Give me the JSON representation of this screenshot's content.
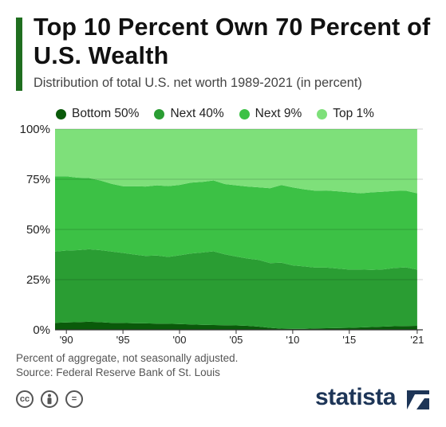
{
  "header": {
    "title": "Top 10 Percent Own 70 Percent of U.S. Wealth",
    "subtitle": "Distribution of total U.S. net worth 1989-2021 (in percent)"
  },
  "note": {
    "line1": "Percent of aggregate, not seasonally adjusted.",
    "line2": "Source: Federal Reserve Bank of St. Louis"
  },
  "footer": {
    "brand": "statista",
    "license_icons": [
      "cc-icon",
      "by-icon",
      "nd-icon"
    ],
    "cc_text": "cc",
    "nd_text": "="
  },
  "colors": {
    "bottom50": "#0a5a0a",
    "next40": "#2a9d33",
    "next9": "#3cc145",
    "top1": "#7ee07a",
    "background": "#ffffff",
    "brand": "#1d3557"
  },
  "chart_data": {
    "type": "area",
    "stacked": true,
    "x_tick_labels": [
      "'90",
      "'95",
      "'00",
      "'05",
      "'10",
      "'15",
      "'21"
    ],
    "x_tick_values": [
      1990,
      1995,
      2000,
      2005,
      2010,
      2015,
      2021
    ],
    "y_tick_labels": [
      "0%",
      "25%",
      "50%",
      "75%",
      "100%"
    ],
    "y_tick_values": [
      0,
      25,
      50,
      75,
      100
    ],
    "xlim": [
      1989,
      2021.5
    ],
    "ylim": [
      0,
      100
    ],
    "grid": true,
    "legend_position": "top",
    "x": [
      1989,
      1990,
      1991,
      1992,
      1993,
      1994,
      1995,
      1996,
      1997,
      1998,
      1999,
      2000,
      2001,
      2002,
      2003,
      2004,
      2005,
      2006,
      2007,
      2008,
      2009,
      2010,
      2011,
      2012,
      2013,
      2014,
      2015,
      2016,
      2017,
      2018,
      2019,
      2020,
      2021
    ],
    "series": [
      {
        "name": "Bottom 50%",
        "color": "#0a5a0a",
        "values": [
          3.5,
          3.7,
          3.8,
          4.0,
          3.8,
          3.5,
          3.4,
          3.3,
          3.2,
          3.1,
          3.0,
          2.9,
          2.7,
          2.5,
          2.4,
          2.3,
          2.2,
          2.0,
          1.6,
          1.0,
          0.6,
          0.5,
          0.5,
          0.7,
          0.8,
          0.9,
          1.0,
          1.2,
          1.4,
          1.6,
          1.8,
          1.9,
          2.0
        ]
      },
      {
        "name": "Next 40%",
        "color": "#2a9d33",
        "values": [
          35.5,
          35.8,
          35.9,
          36.1,
          35.9,
          35.5,
          34.9,
          34.2,
          33.6,
          33.9,
          33.3,
          34.2,
          35.3,
          36.0,
          36.7,
          35.3,
          34.3,
          33.5,
          33.2,
          32.2,
          32.8,
          31.6,
          31.1,
          30.3,
          30.2,
          29.6,
          29.0,
          28.8,
          28.5,
          28.5,
          29.0,
          29.2,
          28.0
        ]
      },
      {
        "name": "Next 9%",
        "color": "#3cc145",
        "values": [
          37.5,
          37.0,
          36.1,
          35.5,
          34.7,
          33.7,
          33.2,
          34.0,
          34.6,
          35.0,
          35.3,
          35.1,
          35.3,
          35.2,
          35.3,
          35.0,
          35.5,
          35.9,
          36.2,
          37.3,
          38.7,
          38.8,
          38.4,
          38.3,
          38.4,
          38.5,
          38.5,
          38.0,
          38.6,
          38.7,
          38.4,
          38.2,
          38.0
        ]
      },
      {
        "name": "Top 1%",
        "color": "#7ee07a",
        "values": [
          23.5,
          23.5,
          24.2,
          24.4,
          25.6,
          27.3,
          28.5,
          28.5,
          28.6,
          28.0,
          28.4,
          27.8,
          26.7,
          26.3,
          25.6,
          27.4,
          28.0,
          28.6,
          29.0,
          29.5,
          27.9,
          29.1,
          30.0,
          30.7,
          30.6,
          31.0,
          31.5,
          32.0,
          31.5,
          31.2,
          30.8,
          30.7,
          32.0
        ]
      }
    ]
  }
}
